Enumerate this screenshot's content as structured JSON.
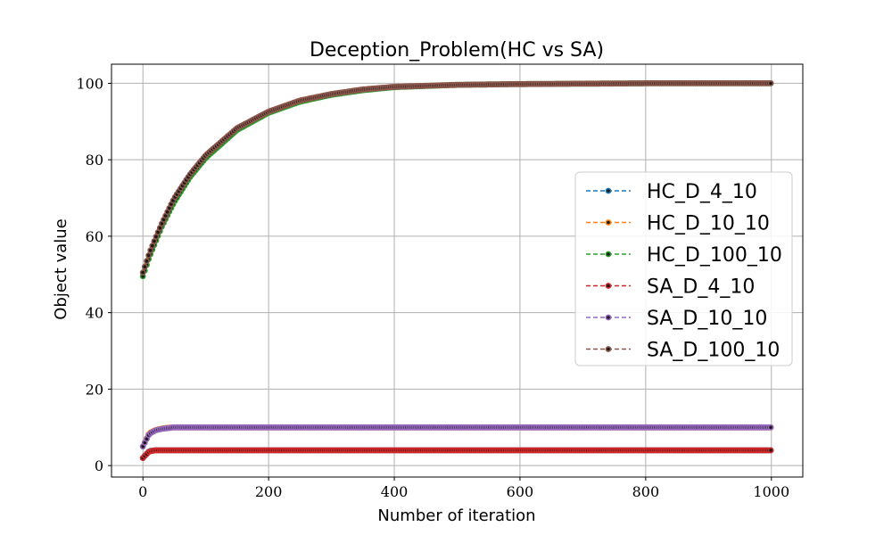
{
  "colors": {
    "HC_D_4_10": "#1f77b4",
    "HC_D_10_10": "#ff7f0e",
    "HC_D_100_10": "#2ca02c",
    "SA_D_4_10": "#d62728",
    "SA_D_10_10": "#9467bd",
    "SA_D_100_10": "#8c564b",
    "grid": "#b0b0b0",
    "axes": "#000000"
  },
  "chart_data": {
    "type": "line",
    "title": "Deception_Problem(HC vs SA)",
    "xlabel": "Number of iteration",
    "ylabel": "Object value",
    "xlim": [
      -50,
      1050
    ],
    "ylim": [
      -3,
      105
    ],
    "xticks": [
      0,
      200,
      400,
      600,
      800,
      1000
    ],
    "yticks": [
      0,
      20,
      40,
      60,
      80,
      100
    ],
    "grid": true,
    "legend_position": "center-right",
    "line_style": "dashed",
    "marker": "dot",
    "x": [
      0,
      10,
      20,
      30,
      40,
      50,
      75,
      100,
      150,
      200,
      250,
      300,
      350,
      400,
      500,
      600,
      700,
      800,
      900,
      1000
    ],
    "series": [
      {
        "name": "HC_D_4_10",
        "values": [
          2,
          3.8,
          4,
          4,
          4,
          4,
          4,
          4,
          4,
          4,
          4,
          4,
          4,
          4,
          4,
          4,
          4,
          4,
          4,
          4
        ]
      },
      {
        "name": "HC_D_10_10",
        "values": [
          5,
          8.5,
          9.3,
          9.7,
          9.9,
          10,
          10,
          10,
          10,
          10,
          10,
          10,
          10,
          10,
          10,
          10,
          10,
          10,
          10,
          10
        ]
      },
      {
        "name": "HC_D_100_10",
        "values": [
          49.5,
          54.5,
          58.5,
          62.5,
          65.8,
          69,
          75.5,
          80.5,
          87.8,
          92.3,
          95.2,
          97,
          98.2,
          99,
          99.6,
          99.8,
          99.9,
          100,
          100,
          100
        ]
      },
      {
        "name": "SA_D_4_10",
        "values": [
          2,
          3.7,
          4,
          4,
          4,
          4,
          4,
          4,
          4,
          4,
          4,
          4,
          4,
          4,
          4,
          4,
          4,
          4,
          4,
          4
        ]
      },
      {
        "name": "SA_D_10_10",
        "values": [
          5,
          8.3,
          9.2,
          9.6,
          9.8,
          10,
          10,
          10,
          10,
          10,
          10,
          10,
          10,
          10,
          10,
          10,
          10,
          10,
          10,
          10
        ]
      },
      {
        "name": "SA_D_100_10",
        "values": [
          50.5,
          55.5,
          59.5,
          63.3,
          66.7,
          70,
          76.2,
          81.2,
          88.3,
          92.6,
          95.5,
          97.2,
          98.4,
          99.1,
          99.6,
          99.8,
          99.9,
          100,
          100,
          100
        ]
      }
    ]
  }
}
